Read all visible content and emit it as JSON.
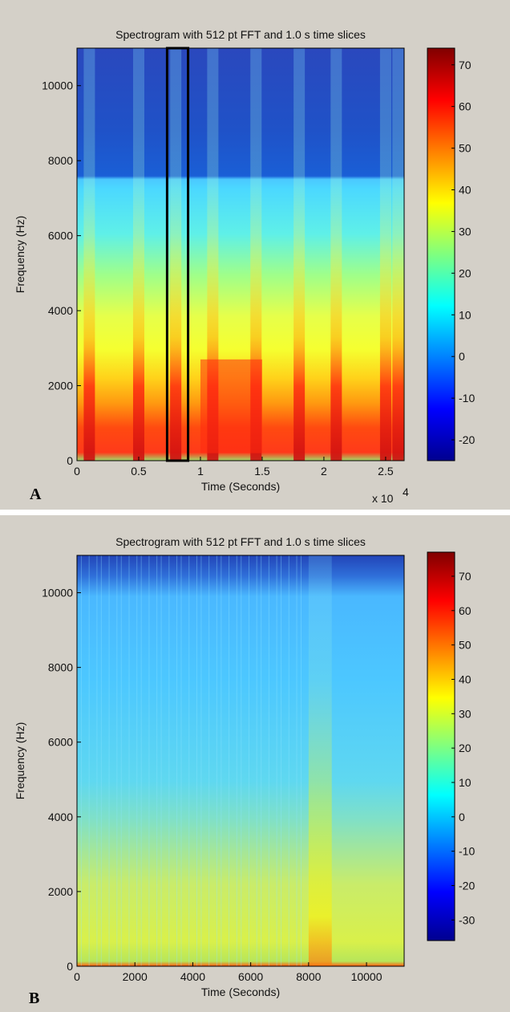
{
  "figure": {
    "panel_labels": [
      "A",
      "B"
    ]
  },
  "chart_data": [
    {
      "type": "heatmap",
      "panel": "A",
      "title": "Spectrogram with 512 pt FFT and 1.0 s time slices",
      "xlabel": "Time (Seconds)",
      "ylabel": "Frequency (Hz)",
      "x_multiplier_label": "x 10",
      "x_multiplier_exponent": "4",
      "xlim": [
        0,
        2.65
      ],
      "ylim": [
        0,
        11000
      ],
      "xticks": [
        0,
        0.5,
        1,
        1.5,
        2,
        2.5
      ],
      "xtick_labels": [
        "0",
        "0.5",
        "1",
        "1.5",
        "2",
        "2.5"
      ],
      "yticks": [
        0,
        2000,
        4000,
        6000,
        8000,
        10000
      ],
      "ytick_labels": [
        "0",
        "2000",
        "4000",
        "6000",
        "8000",
        "10000"
      ],
      "colorbar": {
        "colormap": "jet",
        "range": [
          -25,
          74
        ],
        "ticks": [
          -20,
          -10,
          0,
          10,
          20,
          30,
          40,
          50,
          60,
          70
        ],
        "tick_labels": [
          "-20",
          "-10",
          "0",
          "10",
          "20",
          "30",
          "40",
          "50",
          "60",
          "70"
        ]
      },
      "highlight_box": {
        "x_range": [
          0.73,
          0.9
        ],
        "y_range": [
          0,
          11000
        ],
        "color": "#000000"
      },
      "upper_band_cutoff_hz": 7500,
      "peak_band_hz": [
        1200,
        2000
      ],
      "vertical_events_x": [
        0.1,
        0.5,
        0.8,
        1.1,
        1.45,
        1.8,
        2.1,
        2.5,
        2.6
      ],
      "legend": "none",
      "grid": false
    },
    {
      "type": "heatmap",
      "panel": "B",
      "title": "Spectrogram with 512 pt FFT and 1.0 s time slices",
      "xlabel": "Time (Seconds)",
      "ylabel": "Frequency (Hz)",
      "xlim": [
        0,
        11300
      ],
      "ylim": [
        0,
        11000
      ],
      "xticks": [
        0,
        2000,
        4000,
        6000,
        8000,
        10000
      ],
      "xtick_labels": [
        "0",
        "2000",
        "4000",
        "6000",
        "8000",
        "10000"
      ],
      "yticks": [
        0,
        2000,
        4000,
        6000,
        8000,
        10000
      ],
      "ytick_labels": [
        "0",
        "2000",
        "4000",
        "6000",
        "8000",
        "10000"
      ],
      "colorbar": {
        "colormap": "jet",
        "range": [
          -36,
          77
        ],
        "ticks": [
          -30,
          -20,
          -10,
          0,
          10,
          20,
          30,
          40,
          50,
          60,
          70
        ],
        "tick_labels": [
          "-30",
          "-20",
          "-10",
          "0",
          "10",
          "20",
          "30",
          "40",
          "50",
          "60",
          "70"
        ]
      },
      "event_x_range": [
        8000,
        8800
      ],
      "legend": "none",
      "grid": false
    }
  ]
}
